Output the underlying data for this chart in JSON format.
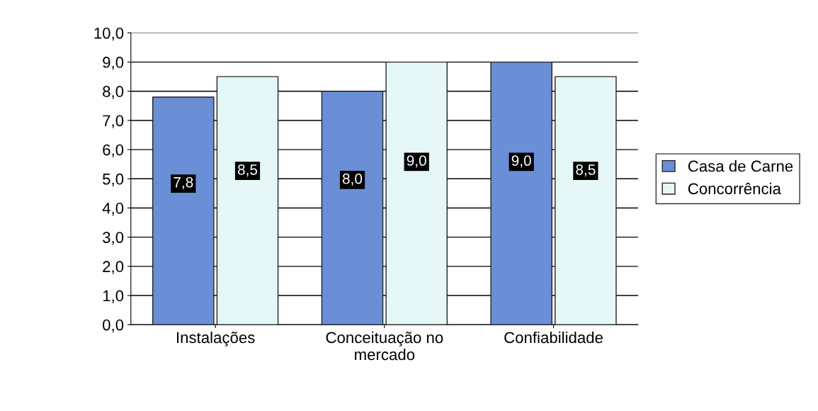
{
  "chart_data": {
    "type": "bar",
    "categories": [
      "Instalações",
      "Conceituação no\nmercado",
      "Confiabilidade"
    ],
    "series": [
      {
        "name": "Casa de Carne",
        "color": "#6b8fd6",
        "values": [
          7.8,
          8.0,
          9.0
        ],
        "value_labels": [
          "7,8",
          "8,0",
          "9,0"
        ]
      },
      {
        "name": "Concorrência",
        "color": "#e6f7f7",
        "values": [
          8.5,
          9.0,
          8.5
        ],
        "value_labels": [
          "8,5",
          "9,0",
          "8,5"
        ]
      }
    ],
    "ylim": [
      0,
      10
    ],
    "yticks": [
      {
        "value": 0,
        "label": "0,0"
      },
      {
        "value": 1,
        "label": "1,0"
      },
      {
        "value": 2,
        "label": "2,0"
      },
      {
        "value": 3,
        "label": "3,0"
      },
      {
        "value": 4,
        "label": "4,0"
      },
      {
        "value": 5,
        "label": "5,0"
      },
      {
        "value": 6,
        "label": "6,0"
      },
      {
        "value": 7,
        "label": "7,0"
      },
      {
        "value": 8,
        "label": "8,0"
      },
      {
        "value": 9,
        "label": "9,0"
      },
      {
        "value": 10,
        "label": "10,0"
      }
    ],
    "grid": "y",
    "legend": "right"
  }
}
